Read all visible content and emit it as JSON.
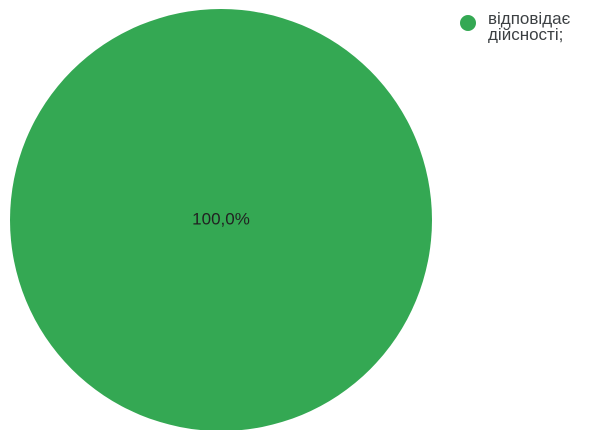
{
  "chart_data": {
    "type": "pie",
    "series": [
      {
        "name": "відповідає\nдійсності;",
        "values": [
          100.0
        ],
        "color": "#34a853"
      }
    ],
    "categories": [
      "відповідає\nдійсності;"
    ],
    "values": [
      100.0
    ],
    "data_labels": [
      "100,0%"
    ],
    "title": "",
    "legend_position": "top-right",
    "colors": [
      "#34a853"
    ]
  }
}
